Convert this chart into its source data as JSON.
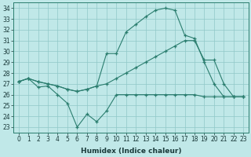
{
  "xlabel": "Humidex (Indice chaleur)",
  "x": [
    0,
    1,
    2,
    3,
    4,
    5,
    6,
    7,
    8,
    9,
    10,
    11,
    12,
    13,
    14,
    15,
    16,
    17,
    18,
    19,
    20,
    21,
    22,
    23
  ],
  "line1": [
    27.2,
    27.5,
    26.7,
    26.8,
    26.0,
    25.2,
    23.0,
    24.2,
    23.5,
    24.5,
    26.0,
    26.0,
    26.0,
    26.0,
    26.0,
    26.0,
    26.0,
    26.0,
    26.0,
    25.8,
    25.8,
    25.8,
    25.8,
    25.8
  ],
  "line2": [
    27.2,
    27.5,
    27.2,
    27.0,
    26.8,
    26.5,
    26.3,
    26.5,
    26.8,
    27.0,
    27.5,
    28.0,
    28.5,
    29.0,
    29.5,
    30.0,
    30.5,
    31.0,
    31.0,
    29.2,
    29.2,
    27.0,
    25.8,
    25.8
  ],
  "line3": [
    27.2,
    27.5,
    27.2,
    27.0,
    26.8,
    26.5,
    26.3,
    26.5,
    26.8,
    29.8,
    29.8,
    31.8,
    32.5,
    33.2,
    33.8,
    34.0,
    33.8,
    31.5,
    31.2,
    29.0,
    27.0,
    25.8,
    25.8,
    25.8
  ],
  "line_color": "#2a7d6e",
  "bg_color": "#c0e8e8",
  "grid_color": "#90c8c8",
  "ylim_min": 22.5,
  "ylim_max": 34.5,
  "yticks": [
    23,
    24,
    25,
    26,
    27,
    28,
    29,
    30,
    31,
    32,
    33,
    34
  ],
  "xlim_min": -0.5,
  "xlim_max": 23.5,
  "xticks": [
    0,
    1,
    2,
    3,
    4,
    5,
    6,
    7,
    8,
    9,
    10,
    11,
    12,
    13,
    14,
    15,
    16,
    17,
    18,
    19,
    20,
    21,
    22,
    23
  ],
  "tick_fontsize": 5.5,
  "xlabel_fontsize": 6.5
}
